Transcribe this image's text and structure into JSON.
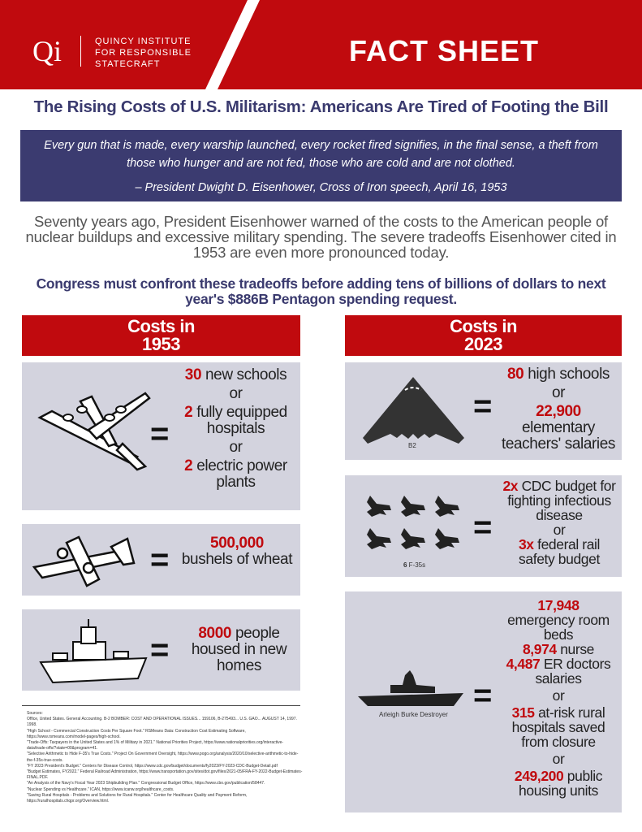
{
  "header": {
    "logo_mark": "Qi",
    "org_lines": [
      "QUINCY INSTITUTE",
      "FOR RESPONSIBLE",
      "STATECRAFT"
    ],
    "label": "FACT SHEET"
  },
  "title": "The Rising Costs of U.S. Militarism: Americans Are Tired of Footing the Bill",
  "quote": {
    "text": "Every gun that is made, every warship launched, every rocket fired signifies, in the final sense, a theft from those who hunger and are not fed, those who are cold and are not clothed.",
    "attribution": "– President Dwight D. Eisenhower, Cross of Iron speech, April 16, 1953"
  },
  "intro": "Seventy years ago, President Eisenhower warned of the costs to the American people of nuclear buildups and excessive military spending. The severe tradeoffs Eisenhower cited in 1953 are even more pronounced today.",
  "statement": "Congress must confront these tradeoffs before adding tens of billions of dollars to next year's $886B Pentagon spending request.",
  "colors": {
    "red": "#c00a0e",
    "navy": "#3b3b70",
    "panel": "#d3d3de"
  },
  "left": {
    "heading": [
      "Costs in",
      "1953"
    ],
    "p1": {
      "icon": "bomber-plane-icon",
      "a_num": "30",
      "a_txt": " new schools",
      "or1": "or",
      "b_num": "2",
      "b_txt": " fully equipped hospitals",
      "or2": "or",
      "c_num": "2",
      "c_txt": " electric power plants"
    },
    "p2": {
      "icon": "fighter-plane-icon",
      "num": "500,000",
      "txt": "bushels of wheat"
    },
    "p3": {
      "icon": "battleship-icon",
      "num": "8000",
      "txt": " people housed in new homes"
    }
  },
  "right": {
    "heading": [
      "Costs in",
      "2023"
    ],
    "p1": {
      "icon": "b2-bomber-icon",
      "caption": "B2",
      "a_num": "80",
      "a_txt": " high schools",
      "or1": "or",
      "b_num": "22,900",
      "b_txt": "elementary teachers' salaries"
    },
    "p2": {
      "icon": "f35-jets-icon",
      "caption_num": "6",
      "caption": " F-35s",
      "a_num": "2x",
      "a_txt": " CDC budget for fighting infectious disease",
      "or1": "or",
      "b_num": "3x",
      "b_txt": " federal rail safety budget"
    },
    "p3": {
      "icon": "destroyer-ship-icon",
      "caption": "Arleigh Burke Destroyer",
      "a_num": "17,948",
      "a_txt": "emergency room beds",
      "b_num": "8,974",
      "b_txt": " nurse",
      "c_num": "4,487",
      "c_txt": " ER doctors salaries",
      "or1": "or",
      "d_num": "315",
      "d_txt": " at-risk rural hospitals saved from closure",
      "or2": "or",
      "e_num": "249,200",
      "e_txt": " public housing units"
    }
  },
  "sources": {
    "heading": "Sources:",
    "items": [
      "Office, United States. General Accounting. B-2 BOMBER: COST AND OPERATIONAL ISSUES... 159106, B-275493... U.S. GAO... AUGUST 14, 1997. 1998.",
      "\"High School - Commercial Construction Costs Per Square Foot.\" RSMeans Data: Construction Cost Estimating Software, https://www.rsmeans.com/model-pages/high-school.",
      "\"Trade-Offs: Taxpayers in the United States and 1% of Military in 2021.\" National Priorities Project, https://www.nationalpriorities.org/interactive-data/trade-offs/?state=00&program=41.",
      "\"Selective Arithmetic to Hide F-35's True Costs.\" Project On Government Oversight, https://www.pogo.org/analysis/2020/10/selective-arithmetic-to-hide-the-f-35s-true-costs.",
      "\"FY 2023 President's Budget.\" Centers for Disease Control, https://www.cdc.gov/budget/documents/fy2023/FY-2023-CDC-Budget-Detail.pdf",
      "\"Budget Estimates, FY2022.\" Federal Railroad Administration, https://www.transportation.gov/sites/dot.gov/files/2021-05/FRA-FY-2022-Budget-Estimates-FINAL.PDF.",
      "\"An Analysis of the Navy's Fiscal Year 2023 Shipbuilding Plan.\" Congressional Budget Office, https://www.cbo.gov/publication/58447.",
      "\"Nuclear Spending vs Healthcare.\" ICAN, https://www.icanw.org/healthcare_costs.",
      "\"Saving Rural Hospitals - Problems and Solutions for Rural Hospitals.\" Center for Healthcare Quality and Payment Reform, https://ruralhospitals.chqpr.org/Overview.html."
    ]
  }
}
